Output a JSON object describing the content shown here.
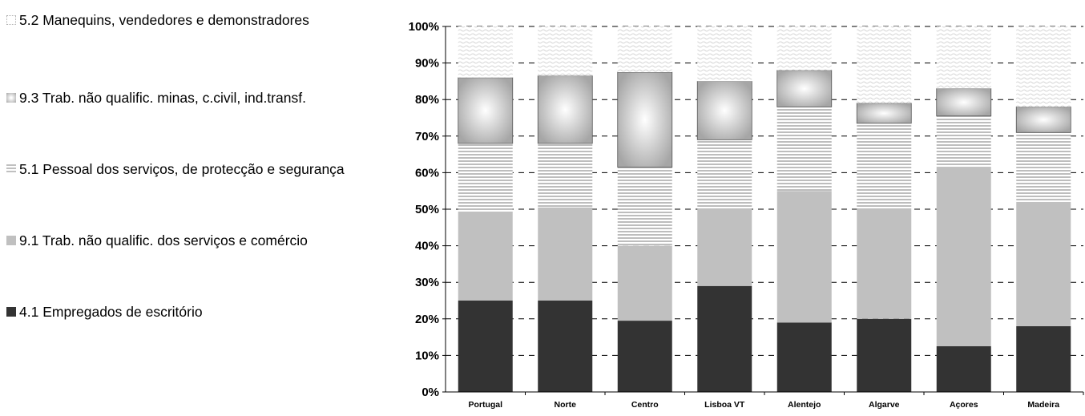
{
  "chart_data": {
    "type": "bar",
    "stacked": true,
    "categories": [
      "Portugal",
      "Norte",
      "Centro",
      "Lisboa VT",
      "Alentejo",
      "Algarve",
      "Açores",
      "Madeira"
    ],
    "series": [
      {
        "name": "4.1 Empregados de escritório",
        "values": [
          25,
          25,
          19.5,
          29,
          19,
          20,
          12.5,
          18
        ]
      },
      {
        "name": "9.1 Trab. não qualific. dos serviços e comércio",
        "values": [
          24,
          25.5,
          20.5,
          21,
          36,
          30,
          49,
          34
        ]
      },
      {
        "name": "5.1 Pessoal dos serviços, de protecção e segurança",
        "values": [
          19,
          17.5,
          21.5,
          19,
          23,
          23.5,
          14,
          19
        ]
      },
      {
        "name": "9.3 Trab. não qualific. minas, c.civil, ind.transf.",
        "values": [
          18,
          18.5,
          26,
          16,
          10,
          5.5,
          7.5,
          7
        ]
      },
      {
        "name": "5.2 Manequins, vendedores e demonstradores",
        "values": [
          14,
          13.5,
          12.5,
          15,
          12,
          21,
          17,
          22
        ]
      }
    ],
    "ylim": [
      0,
      100
    ],
    "y_ticks": [
      "0%",
      "10%",
      "20%",
      "30%",
      "40%",
      "50%",
      "60%",
      "70%",
      "80%",
      "90%",
      "100%"
    ],
    "grid": true,
    "legend_position": "left"
  },
  "legend": {
    "items": [
      {
        "label": "5.2 Manequins, vendedores e demonstradores"
      },
      {
        "label": "9.3 Trab. não qualific. minas, c.civil, ind.transf."
      },
      {
        "label": "5.1 Pessoal dos serviços, de protecção e segurança"
      },
      {
        "label": "9.1 Trab. não qualific. dos serviços e comércio"
      },
      {
        "label": "4.1 Empregados de escritório"
      }
    ]
  }
}
